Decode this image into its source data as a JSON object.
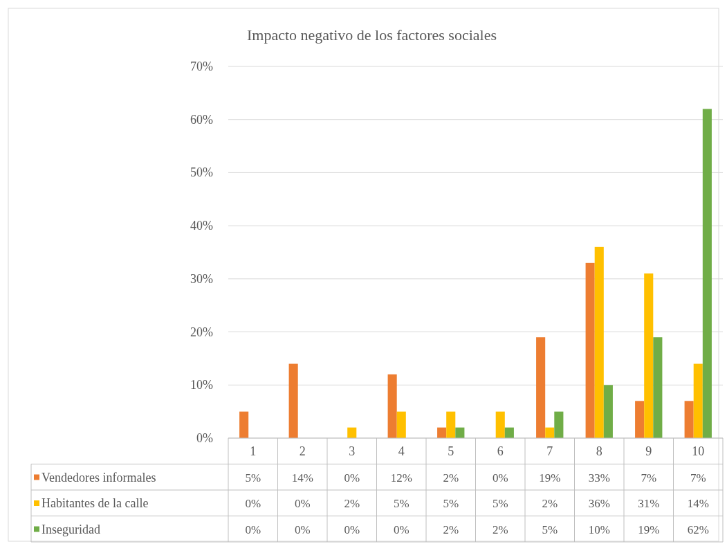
{
  "chart_data": {
    "type": "bar",
    "title": "Impacto negativo  de los factores sociales",
    "categories": [
      "1",
      "2",
      "3",
      "4",
      "5",
      "6",
      "7",
      "8",
      "9",
      "10"
    ],
    "series": [
      {
        "name": "Vendedores informales",
        "color": "#ed7d31",
        "values": [
          5,
          14,
          0,
          12,
          2,
          0,
          19,
          33,
          7,
          7
        ],
        "value_labels": [
          "5%",
          "14%",
          "0%",
          "12%",
          "2%",
          "0%",
          "19%",
          "33%",
          "7%",
          "7%"
        ]
      },
      {
        "name": "Habitantes de la calle",
        "color": "#ffc000",
        "values": [
          0,
          0,
          2,
          5,
          5,
          5,
          2,
          36,
          31,
          14
        ],
        "value_labels": [
          "0%",
          "0%",
          "2%",
          "5%",
          "5%",
          "5%",
          "2%",
          "36%",
          "31%",
          "14%"
        ]
      },
      {
        "name": "Inseguridad",
        "color": "#70ad47",
        "values": [
          0,
          0,
          0,
          0,
          2,
          2,
          5,
          10,
          19,
          62
        ],
        "value_labels": [
          "0%",
          "0%",
          "0%",
          "0%",
          "2%",
          "2%",
          "5%",
          "10%",
          "19%",
          "62%"
        ]
      }
    ],
    "ylim": [
      0,
      70
    ],
    "yticks": [
      {
        "value": 0,
        "label": "0%"
      },
      {
        "value": 10,
        "label": "10%"
      },
      {
        "value": 20,
        "label": "20%"
      },
      {
        "value": 30,
        "label": "30%"
      },
      {
        "value": 40,
        "label": "40%"
      },
      {
        "value": 50,
        "label": "50%"
      },
      {
        "value": 60,
        "label": "60%"
      },
      {
        "value": 70,
        "label": "70%"
      }
    ],
    "grid": "y",
    "legend": "bottom"
  }
}
